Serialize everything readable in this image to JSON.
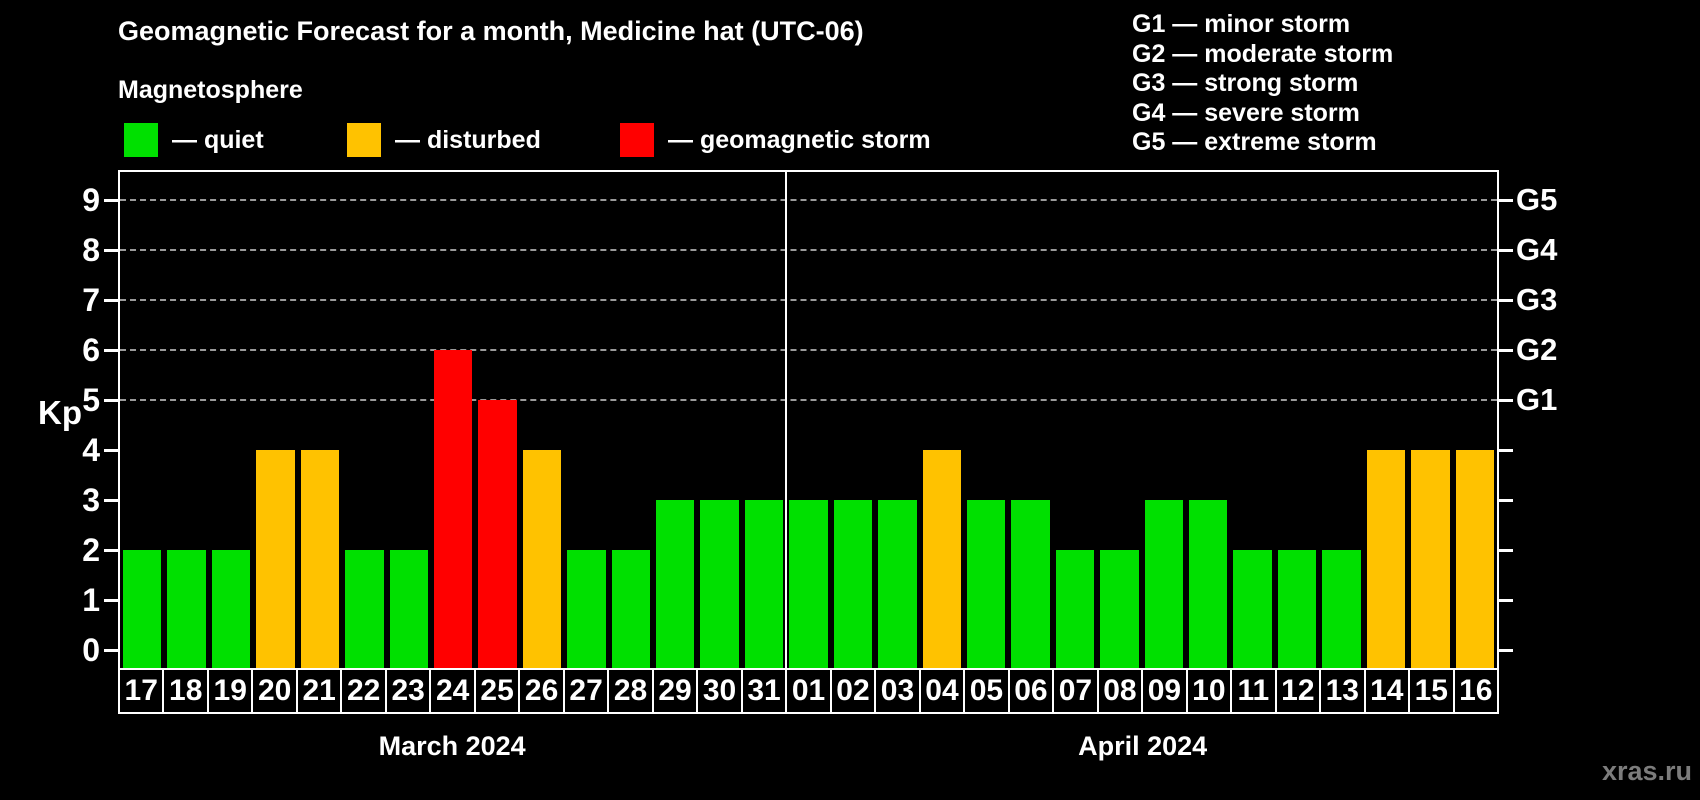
{
  "title": "Geomagnetic Forecast for a month, Medicine hat (UTC-06)",
  "subtitle": "Magnetosphere",
  "watermark": "xras.ru",
  "axes": {
    "y_label": "Kp"
  },
  "legend": {
    "items": [
      {
        "key": "quiet",
        "label": "— quiet",
        "color": "#00e000"
      },
      {
        "key": "disturbed",
        "label": "— disturbed",
        "color": "#ffc200"
      },
      {
        "key": "storm",
        "label": "— geomagnetic storm",
        "color": "#ff0000"
      }
    ]
  },
  "g_legend": [
    "G1 — minor storm",
    "G2 — moderate storm",
    "G3 — strong storm",
    "G4 — severe storm",
    "G5 — extreme storm"
  ],
  "chart_data": {
    "type": "bar",
    "title": "Geomagnetic Forecast for a month, Medicine hat (UTC-06)",
    "xlabel": "",
    "ylabel": "Kp",
    "ylim": [
      0,
      9.5
    ],
    "y_ticks": [
      0,
      1,
      2,
      3,
      4,
      5,
      6,
      7,
      8,
      9
    ],
    "gridlines_at": [
      5,
      6,
      7,
      8,
      9
    ],
    "grid": true,
    "legend_position": "top-left",
    "right_axis_labels": [
      {
        "label": "G1",
        "kp": 5
      },
      {
        "label": "G2",
        "kp": 6
      },
      {
        "label": "G3",
        "kp": 7
      },
      {
        "label": "G4",
        "kp": 8
      },
      {
        "label": "G5",
        "kp": 9
      }
    ],
    "status_colors": {
      "quiet": "#00e000",
      "disturbed": "#ffc200",
      "storm": "#ff0000"
    },
    "months": [
      {
        "label": "March 2024",
        "days": [
          {
            "day": "17",
            "kp": 2,
            "status": "quiet"
          },
          {
            "day": "18",
            "kp": 2,
            "status": "quiet"
          },
          {
            "day": "19",
            "kp": 2,
            "status": "quiet"
          },
          {
            "day": "20",
            "kp": 4,
            "status": "disturbed"
          },
          {
            "day": "21",
            "kp": 4,
            "status": "disturbed"
          },
          {
            "day": "22",
            "kp": 2,
            "status": "quiet"
          },
          {
            "day": "23",
            "kp": 2,
            "status": "quiet"
          },
          {
            "day": "24",
            "kp": 6,
            "status": "storm"
          },
          {
            "day": "25",
            "kp": 5,
            "status": "storm"
          },
          {
            "day": "26",
            "kp": 4,
            "status": "disturbed"
          },
          {
            "day": "27",
            "kp": 2,
            "status": "quiet"
          },
          {
            "day": "28",
            "kp": 2,
            "status": "quiet"
          },
          {
            "day": "29",
            "kp": 3,
            "status": "quiet"
          },
          {
            "day": "30",
            "kp": 3,
            "status": "quiet"
          },
          {
            "day": "31",
            "kp": 3,
            "status": "quiet"
          }
        ]
      },
      {
        "label": "April 2024",
        "days": [
          {
            "day": "01",
            "kp": 3,
            "status": "quiet"
          },
          {
            "day": "02",
            "kp": 3,
            "status": "quiet"
          },
          {
            "day": "03",
            "kp": 3,
            "status": "quiet"
          },
          {
            "day": "04",
            "kp": 4,
            "status": "disturbed"
          },
          {
            "day": "05",
            "kp": 3,
            "status": "quiet"
          },
          {
            "day": "06",
            "kp": 3,
            "status": "quiet"
          },
          {
            "day": "07",
            "kp": 2,
            "status": "quiet"
          },
          {
            "day": "08",
            "kp": 2,
            "status": "quiet"
          },
          {
            "day": "09",
            "kp": 3,
            "status": "quiet"
          },
          {
            "day": "10",
            "kp": 3,
            "status": "quiet"
          },
          {
            "day": "11",
            "kp": 2,
            "status": "quiet"
          },
          {
            "day": "12",
            "kp": 2,
            "status": "quiet"
          },
          {
            "day": "13",
            "kp": 2,
            "status": "quiet"
          },
          {
            "day": "14",
            "kp": 4,
            "status": "disturbed"
          },
          {
            "day": "15",
            "kp": 4,
            "status": "disturbed"
          },
          {
            "day": "16",
            "kp": 4,
            "status": "disturbed"
          }
        ]
      }
    ]
  }
}
